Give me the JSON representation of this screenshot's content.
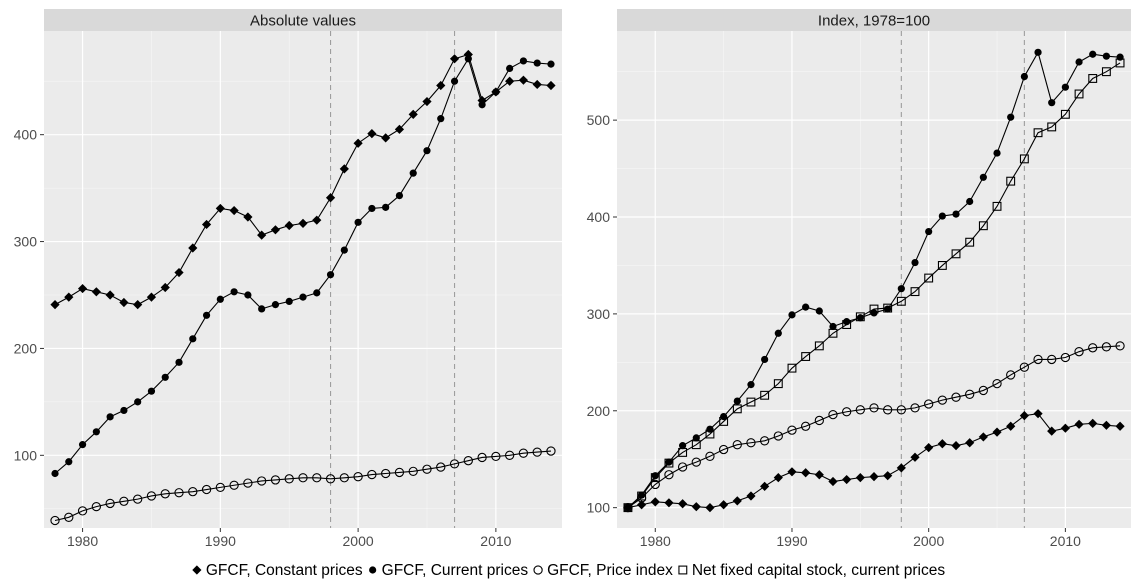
{
  "colors": {
    "panel_bg": "#ebebeb",
    "strip_bg": "#d9d9d9",
    "grid_major": "#ffffff",
    "line": "#000000",
    "vline": "#9e9e9e"
  },
  "chart_data": [
    {
      "type": "line",
      "title": "Absolute values",
      "xlim": [
        1977.2,
        2014.8
      ],
      "ylim": [
        32,
        497
      ],
      "xticks": [
        1980,
        1990,
        2000,
        2010
      ],
      "yticks": [
        100,
        200,
        300,
        400
      ],
      "vlines": [
        1998,
        2007
      ],
      "x": [
        1978,
        1979,
        1980,
        1981,
        1982,
        1983,
        1984,
        1985,
        1986,
        1987,
        1988,
        1989,
        1990,
        1991,
        1992,
        1993,
        1994,
        1995,
        1996,
        1997,
        1998,
        1999,
        2000,
        2001,
        2002,
        2003,
        2004,
        2005,
        2006,
        2007,
        2008,
        2009,
        2010,
        2011,
        2012,
        2013,
        2014
      ],
      "series": [
        {
          "name": "GFCF, Constant prices",
          "marker": "diamond",
          "values": [
            241,
            248,
            256,
            253,
            250,
            243,
            241,
            248,
            257,
            271,
            294,
            316,
            331,
            329,
            323,
            306,
            311,
            315,
            317,
            320,
            341,
            368,
            392,
            401,
            397,
            405,
            419,
            431,
            446,
            471,
            475,
            432,
            440,
            450,
            451,
            447,
            446
          ]
        },
        {
          "name": "GFCF, Current prices",
          "marker": "dot",
          "values": [
            83,
            94,
            110,
            122,
            136,
            142,
            150,
            160,
            173,
            187,
            209,
            231,
            246,
            253,
            250,
            237,
            241,
            244,
            248,
            252,
            269,
            292,
            318,
            331,
            332,
            343,
            364,
            385,
            415,
            450,
            471,
            428,
            440,
            462,
            469,
            467,
            466
          ]
        },
        {
          "name": "GFCF, Price index",
          "marker": "circle",
          "values": [
            39,
            42,
            48,
            52,
            55,
            57,
            59,
            62,
            64,
            65,
            66,
            68,
            70,
            72,
            74,
            76,
            77,
            78,
            79,
            79,
            78,
            79,
            80,
            82,
            83,
            84,
            85,
            87,
            89,
            92,
            95,
            98,
            99,
            100,
            102,
            103,
            104
          ]
        }
      ]
    },
    {
      "type": "line",
      "title": "Index, 1978=100",
      "xlim": [
        1977.2,
        2014.8
      ],
      "ylim": [
        79,
        592
      ],
      "xticks": [
        1980,
        1990,
        2000,
        2010
      ],
      "yticks": [
        100,
        200,
        300,
        400,
        500
      ],
      "vlines": [
        1998,
        2007
      ],
      "x": [
        1978,
        1979,
        1980,
        1981,
        1982,
        1983,
        1984,
        1985,
        1986,
        1987,
        1988,
        1989,
        1990,
        1991,
        1992,
        1993,
        1994,
        1995,
        1996,
        1997,
        1998,
        1999,
        2000,
        2001,
        2002,
        2003,
        2004,
        2005,
        2006,
        2007,
        2008,
        2009,
        2010,
        2011,
        2012,
        2013,
        2014
      ],
      "series": [
        {
          "name": "GFCF, Constant prices",
          "marker": "diamond",
          "values": [
            100,
            103,
            106,
            105,
            104,
            101,
            100,
            103,
            107,
            112,
            122,
            131,
            137,
            136,
            134,
            127,
            129,
            131,
            132,
            133,
            141,
            152,
            162,
            166,
            164,
            167,
            173,
            178,
            184,
            195,
            197,
            179,
            182,
            186,
            187,
            185,
            184
          ]
        },
        {
          "name": "GFCF, Current prices",
          "marker": "dot",
          "values": [
            100,
            113,
            133,
            147,
            164,
            172,
            181,
            194,
            210,
            227,
            253,
            280,
            299,
            307,
            303,
            287,
            292,
            296,
            301,
            305,
            326,
            353,
            385,
            401,
            403,
            416,
            441,
            466,
            503,
            545,
            570,
            518,
            534,
            560,
            568,
            566,
            565
          ]
        },
        {
          "name": "GFCF, Price index",
          "marker": "circle",
          "values": [
            100,
            110,
            124,
            134,
            142,
            147,
            153,
            160,
            165,
            167,
            169,
            174,
            180,
            184,
            190,
            196,
            199,
            201,
            203,
            201,
            201,
            203,
            207,
            211,
            214,
            217,
            221,
            228,
            237,
            245,
            253,
            253,
            255,
            261,
            265,
            266,
            267
          ]
        },
        {
          "name": "Net fixed capital stock, current prices",
          "marker": "square",
          "values": [
            100,
            112,
            131,
            146,
            157,
            165,
            176,
            189,
            202,
            209,
            216,
            228,
            244,
            256,
            267,
            280,
            289,
            297,
            305,
            306,
            313,
            323,
            337,
            350,
            362,
            374,
            391,
            411,
            437,
            460,
            487,
            493,
            506,
            527,
            543,
            550,
            559
          ]
        }
      ]
    }
  ],
  "legend": {
    "position": "bottom",
    "items": [
      {
        "label": "GFCF, Constant prices",
        "marker": "diamond"
      },
      {
        "label": "GFCF, Current prices",
        "marker": "dot"
      },
      {
        "label": "GFCF, Price index",
        "marker": "circle"
      },
      {
        "label": "Net fixed capital stock, current prices",
        "marker": "square"
      }
    ]
  }
}
